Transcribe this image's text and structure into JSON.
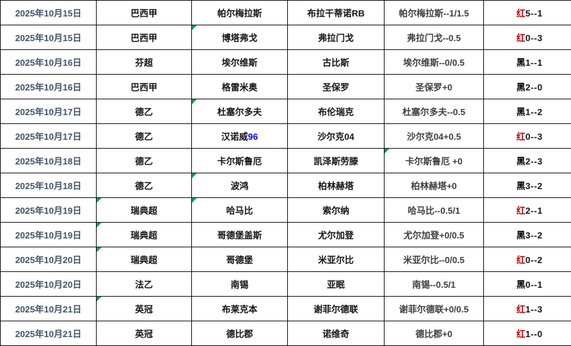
{
  "table": {
    "columns": [
      {
        "key": "date"
      },
      {
        "key": "league"
      },
      {
        "key": "home"
      },
      {
        "key": "away"
      },
      {
        "key": "handicap"
      },
      {
        "key": "result"
      }
    ],
    "colors": {
      "date_text": "#44546A",
      "handicap_text": "#3F3F3F",
      "result_red_flag": "#C00000",
      "result_black_flag": "#000000",
      "blue_suffix": "#0000EE",
      "comment_marker_green": "#00A550",
      "selection_underline_green": "#17A25C",
      "grid_border": "#141414"
    },
    "rows": [
      {
        "date": "2025年10月15日",
        "league": "巴西甲",
        "home": "帕尔梅拉斯",
        "away": "布拉干蒂诺RB",
        "handicap": "帕尔梅拉斯--1/1.5",
        "result_flag": "红",
        "result_score": "5--1"
      },
      {
        "date": "2025年10月15日",
        "league": "巴西甲",
        "home": "博塔弗戈",
        "away": "弗拉门戈",
        "handicap": "弗拉门戈--0.5",
        "result_flag": "红",
        "result_score": "0--3",
        "markers": [
          "home"
        ]
      },
      {
        "date": "2025年10月16日",
        "league": "芬超",
        "home": "埃尔维斯",
        "away": "古比斯",
        "handicap": "埃尔维斯--0/0.5",
        "result_flag": "黑",
        "result_score": "1--1"
      },
      {
        "date": "2025年10月16日",
        "league": "巴西甲",
        "home": "格雷米奥",
        "away": "圣保罗",
        "handicap": "圣保罗+0",
        "result_flag": "黑",
        "result_score": "2--0"
      },
      {
        "date": "2025年10月17日",
        "league": "德乙",
        "home": "杜塞尔多夫",
        "away": "布伦瑞克",
        "handicap": "杜塞尔多夫--0.5",
        "result_flag": "黑",
        "result_score": "1--2",
        "markers": [
          "home"
        ]
      },
      {
        "date": "2025年10月17日",
        "league": "德乙",
        "home": "汉诺威",
        "home_suffix": "96",
        "away": "沙尔克04",
        "handicap": "沙尔克04+0.5",
        "result_flag": "红",
        "result_score": "0--3"
      },
      {
        "date": "2025年10月18日",
        "league": "德乙",
        "home": "卡尔斯鲁厄",
        "away": "凯泽斯劳滕",
        "handicap": "卡尔斯鲁厄 +0",
        "result_flag": "黑",
        "result_score": "2--3",
        "markers": [
          "handicap"
        ]
      },
      {
        "date": "2025年10月18日",
        "league": "德乙",
        "home": "波鸿",
        "away": "柏林赫塔",
        "handicap": "柏林赫塔+0",
        "result_flag": "黑",
        "result_score": "3--2",
        "markers": [
          "home"
        ]
      },
      {
        "date": "2025年10月19日",
        "league": "瑞典超",
        "home": "哈马比",
        "away": "索尔纳",
        "handicap": "哈马比--0.5/1",
        "result_flag": "红",
        "result_score": "2--1",
        "markers": [
          "league",
          "home"
        ]
      },
      {
        "date": "2025年10月19日",
        "league": "瑞典超",
        "home": "哥德堡盖斯",
        "away": "尤尔加登",
        "handicap": "尤尔加登+0/0.5",
        "result_flag": "黑",
        "result_score": "3--2",
        "markers": [
          "league"
        ]
      },
      {
        "date": "2025年10月20日",
        "league": "瑞典超",
        "home": "哥德堡",
        "away": "米亚尔比",
        "handicap": "米亚尔比--0/0.5",
        "result_flag": "红",
        "result_score": "0--2",
        "markers": [
          "league"
        ]
      },
      {
        "date": "2025年10月20日",
        "league": "法乙",
        "home": "南锡",
        "away": "亚眠",
        "handicap": "南锡--0.5/1",
        "result_flag": "黑",
        "result_score": "0--1"
      },
      {
        "date": "2025年10月21日",
        "league": "英冠",
        "home": "布莱克本",
        "away": "谢菲尔德联",
        "handicap": "谢菲尔德联+0/0.5",
        "result_flag": "红",
        "result_score": "1--3",
        "markers": [
          "league"
        ]
      },
      {
        "date": "2025年10月21日",
        "league": "英冠",
        "home": "德比郡",
        "away": "诺维奇",
        "handicap": "德比郡+0",
        "result_flag": "红",
        "result_score": "1--0",
        "green_underline": "league"
      }
    ]
  }
}
